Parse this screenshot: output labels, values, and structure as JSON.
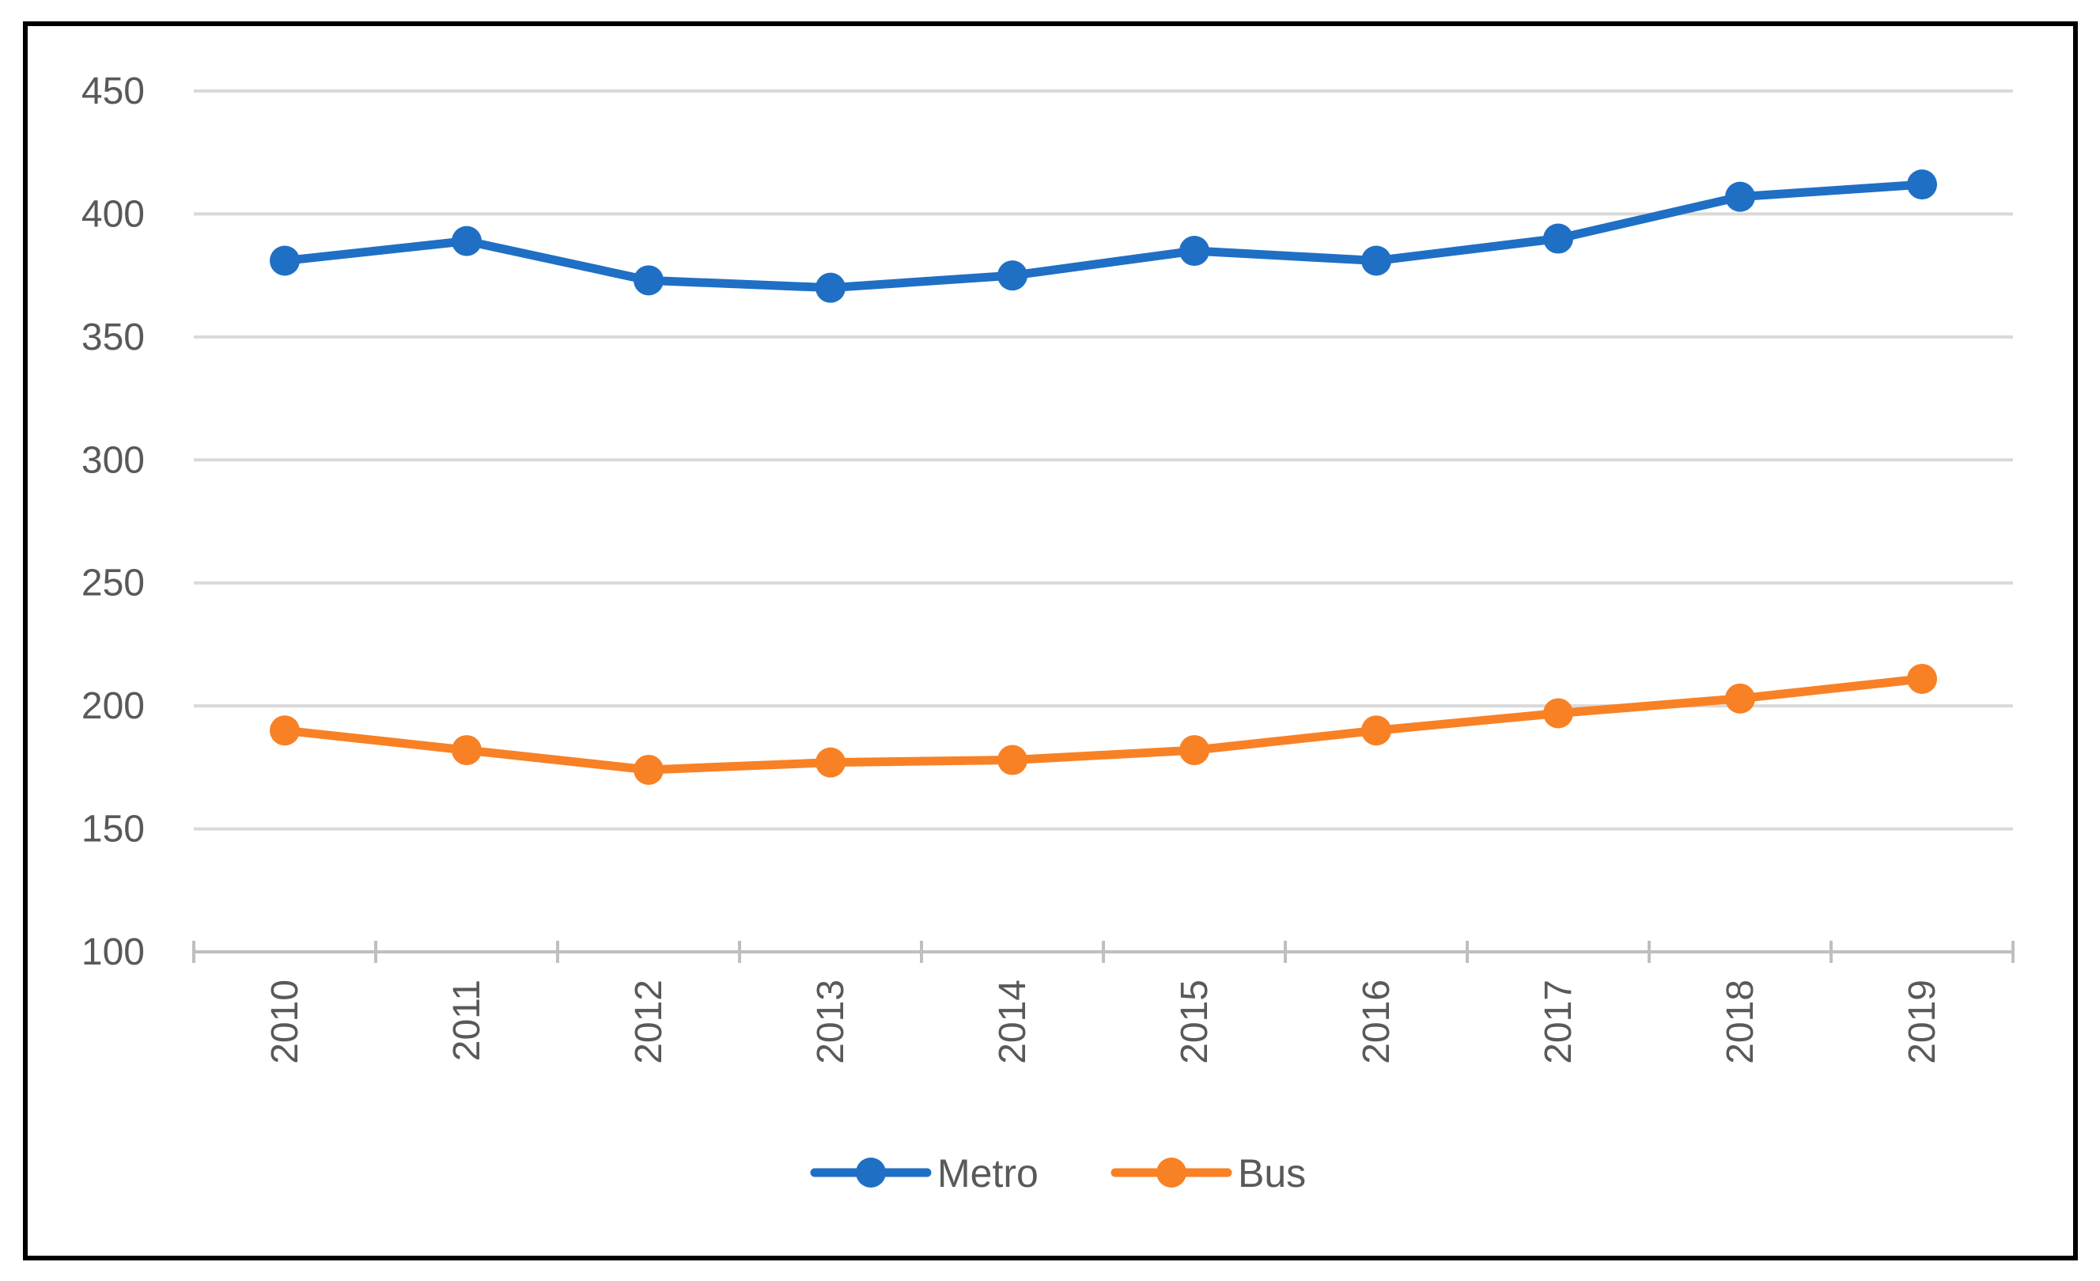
{
  "chart_data": {
    "type": "line",
    "title": "",
    "xlabel": "",
    "ylabel": "",
    "ylim": [
      100,
      450
    ],
    "yticks": [
      100,
      150,
      200,
      250,
      300,
      350,
      400,
      450
    ],
    "grid": true,
    "legend_position": "bottom",
    "categories": [
      "2010",
      "2011",
      "2012",
      "2013",
      "2014",
      "2015",
      "2016",
      "2017",
      "2018",
      "2019"
    ],
    "series": [
      {
        "name": "Metro",
        "color": "#1F6FC5",
        "values": [
          381,
          389,
          373,
          370,
          375,
          385,
          381,
          390,
          407,
          412
        ]
      },
      {
        "name": "Bus",
        "color": "#F88125",
        "values": [
          190,
          182,
          174,
          177,
          178,
          182,
          190,
          197,
          203,
          211
        ]
      }
    ]
  }
}
